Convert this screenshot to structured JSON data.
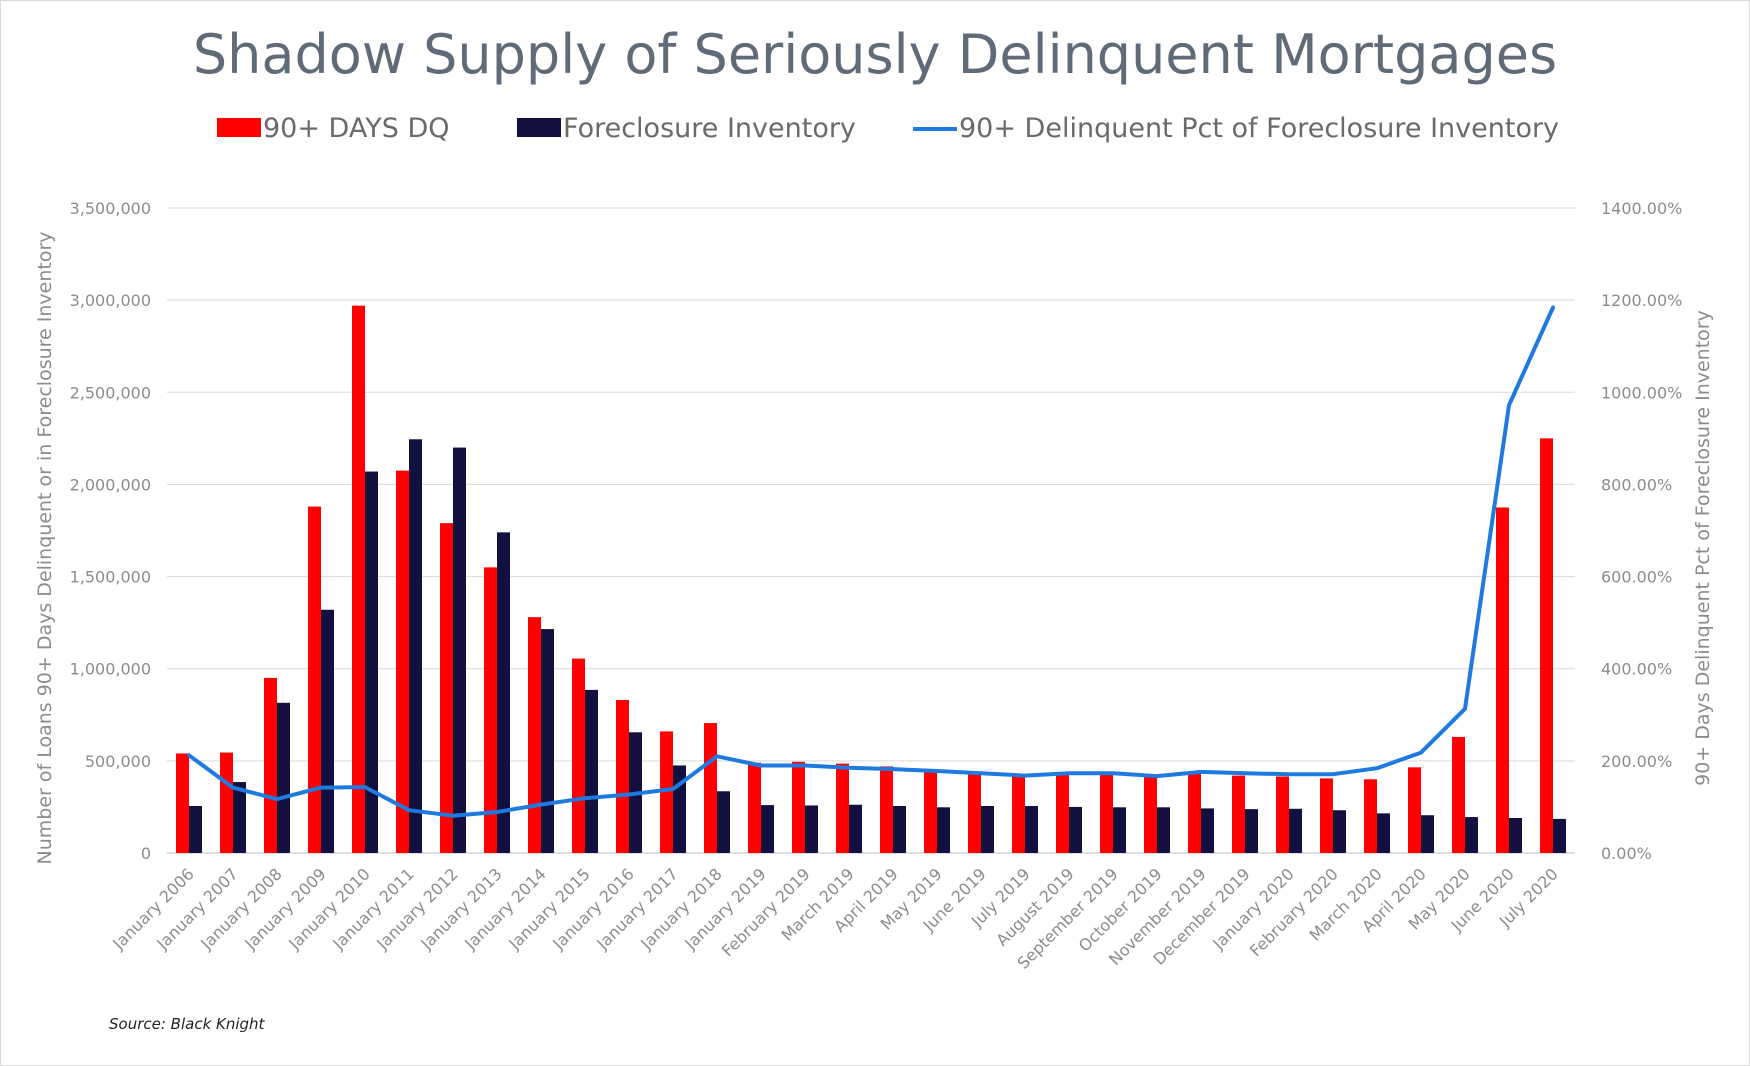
{
  "chart_data": {
    "type": "bar",
    "title": "Shadow Supply of Seriously Delinquent Mortgages",
    "source": "Source: Black Knight",
    "ylabel": "Number of Loans 90+ Days Delinquent or in Foreclosure Inventory",
    "y2label": "90+ Days Delinquent Pct of Foreclosure Inventory",
    "ylim": [
      0,
      3500000
    ],
    "y2lim": [
      0,
      1400
    ],
    "yticks": [
      "0",
      "500,000",
      "1,000,000",
      "1,500,000",
      "2,000,000",
      "2,500,000",
      "3,000,000",
      "3,500,000"
    ],
    "y2ticks": [
      "0.00%",
      "200.00%",
      "400.00%",
      "600.00%",
      "800.00%",
      "1000.00%",
      "1200.00%",
      "1400.00%"
    ],
    "grid": true,
    "legend_position": "top",
    "categories": [
      "January 2006",
      "January 2007",
      "January 2008",
      "January 2009",
      "January 2010",
      "January 2011",
      "January 2012",
      "January 2013",
      "January 2014",
      "January 2015",
      "January 2016",
      "January 2017",
      "January 2018",
      "January 2019",
      "February 2019",
      "March 2019",
      "April 2019",
      "May 2019",
      "June 2019",
      "July 2019",
      "August 2019",
      "September 2019",
      "October 2019",
      "November 2019",
      "December 2019",
      "January 2020",
      "February 2020",
      "March 2020",
      "April 2020",
      "May 2020",
      "June 2020",
      "July 2020"
    ],
    "series": [
      {
        "name": "90+ DAYS DQ",
        "type": "bar",
        "axis": "left",
        "color": "#ff0000",
        "values": [
          540000,
          545000,
          950000,
          1880000,
          2970000,
          2075000,
          1790000,
          1550000,
          1280000,
          1055000,
          830000,
          660000,
          705000,
          490000,
          495000,
          485000,
          470000,
          445000,
          435000,
          425000,
          425000,
          425000,
          415000,
          430000,
          420000,
          415000,
          405000,
          400000,
          465000,
          630000,
          1875000,
          2250000
        ]
      },
      {
        "name": "Foreclosure Inventory",
        "type": "bar",
        "axis": "left",
        "color": "#12103f",
        "values": [
          255000,
          385000,
          815000,
          1320000,
          2070000,
          2245000,
          2200000,
          1740000,
          1215000,
          885000,
          655000,
          475000,
          335000,
          260000,
          258000,
          262000,
          255000,
          248000,
          255000,
          255000,
          250000,
          248000,
          248000,
          242000,
          238000,
          240000,
          232000,
          215000,
          205000,
          195000,
          190000,
          185000
        ]
      },
      {
        "name": "90+ Delinquent Pct of Foreclosure Inventory",
        "type": "line",
        "axis": "right",
        "color": "#1f7ae0",
        "values": [
          212,
          142,
          117,
          142,
          143,
          93,
          81,
          89,
          105,
          119,
          127,
          139,
          210,
          190,
          190,
          185,
          182,
          178,
          173,
          168,
          173,
          173,
          167,
          176,
          173,
          171,
          171,
          184,
          218,
          313,
          972,
          1184
        ]
      }
    ]
  }
}
